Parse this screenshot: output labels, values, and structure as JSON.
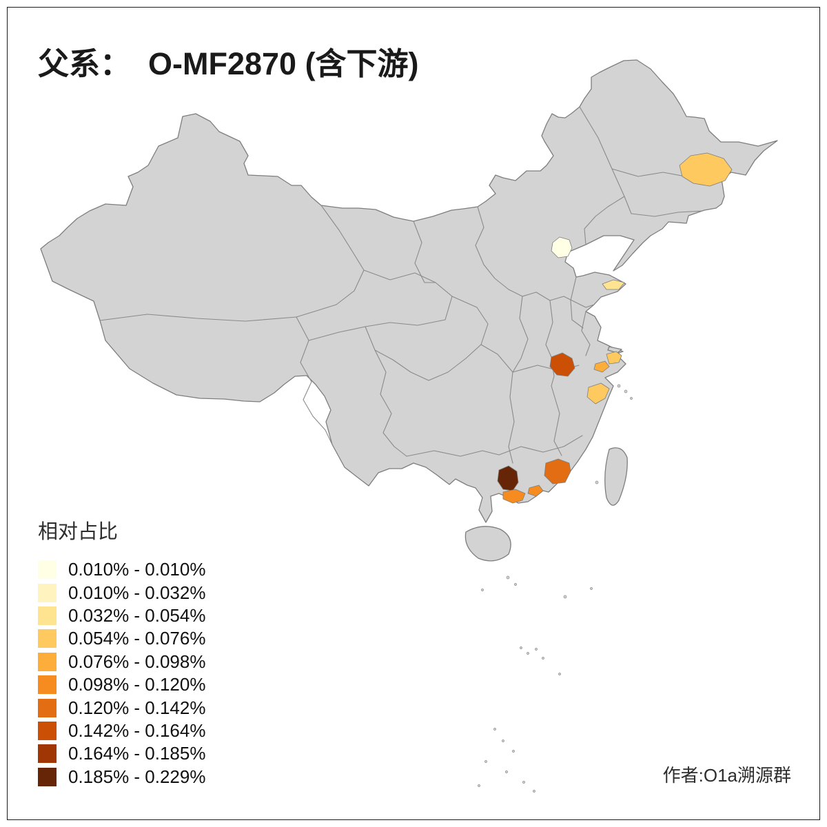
{
  "title": "父系：  O-MF2870 (含下游)",
  "author_credit": "作者:O1a溯源群",
  "legend": {
    "title": "相对占比",
    "items": [
      {
        "range": "0.010% - 0.010%",
        "color": "#FFFFE5"
      },
      {
        "range": "0.010% - 0.032%",
        "color": "#FFF3BF"
      },
      {
        "range": "0.032% - 0.054%",
        "color": "#FEE391"
      },
      {
        "range": "0.054% - 0.076%",
        "color": "#FEC95F"
      },
      {
        "range": "0.076% - 0.098%",
        "color": "#FDAE3A"
      },
      {
        "range": "0.098% - 0.120%",
        "color": "#F68C20"
      },
      {
        "range": "0.120% - 0.142%",
        "color": "#E36D12"
      },
      {
        "range": "0.142% - 0.164%",
        "color": "#CC4F06"
      },
      {
        "range": "0.164% - 0.185%",
        "color": "#A03603"
      },
      {
        "range": "0.185% - 0.229%",
        "color": "#662506"
      }
    ]
  },
  "map": {
    "base_fill": "#D3D3D3",
    "border_color": "#7d7d7d",
    "highlights": [
      {
        "id": "northeast-heilongjiang-region",
        "range": "0.054% - 0.076%",
        "color": "#FEC95F"
      },
      {
        "id": "beijing-region",
        "range": "0.010% - 0.010%",
        "color": "#FFFFE5"
      },
      {
        "id": "shandong-peninsula-region",
        "range": "0.032% - 0.054%",
        "color": "#FEE391"
      },
      {
        "id": "anhui-central-region",
        "range": "0.142% - 0.164%",
        "color": "#CC4F06"
      },
      {
        "id": "jiangsu-coast-region",
        "range": "0.054% - 0.076%",
        "color": "#FEC95F"
      },
      {
        "id": "jiangsu-south-region",
        "range": "0.076% - 0.098%",
        "color": "#FDAE3A"
      },
      {
        "id": "zhejiang-north-region",
        "range": "0.054% - 0.076%",
        "color": "#FEC95F"
      },
      {
        "id": "guangdong-west-region",
        "range": "0.185% - 0.229%",
        "color": "#662506"
      },
      {
        "id": "guangdong-central-region",
        "range": "0.120% - 0.142%",
        "color": "#E36D12"
      },
      {
        "id": "guangdong-southwest-region",
        "range": "0.098% - 0.120%",
        "color": "#F68C20"
      },
      {
        "id": "guangdong-coast-small-region",
        "range": "0.098% - 0.120%",
        "color": "#F68C20"
      }
    ]
  },
  "chart_data": {
    "type": "choropleth-map",
    "title": "父系：  O-MF2870 (含下游)",
    "legend_title": "相对占比",
    "legend_position": "bottom-left",
    "classes": [
      {
        "range": "0.010% - 0.010%",
        "color": "#FFFFE5"
      },
      {
        "range": "0.010% - 0.032%",
        "color": "#FFF3BF"
      },
      {
        "range": "0.032% - 0.054%",
        "color": "#FEE391"
      },
      {
        "range": "0.054% - 0.076%",
        "color": "#FEC95F"
      },
      {
        "range": "0.076% - 0.098%",
        "color": "#FDAE3A"
      },
      {
        "range": "0.098% - 0.120%",
        "color": "#F68C20"
      },
      {
        "range": "0.120% - 0.142%",
        "color": "#E36D12"
      },
      {
        "range": "0.142% - 0.164%",
        "color": "#CC4F06"
      },
      {
        "range": "0.164% - 0.185%",
        "color": "#A03603"
      },
      {
        "range": "0.185% - 0.229%",
        "color": "#662506"
      }
    ],
    "shaded_regions": [
      {
        "region": "northeast-heilongjiang",
        "class": "0.054% - 0.076%"
      },
      {
        "region": "beijing",
        "class": "0.010% - 0.010%"
      },
      {
        "region": "shandong-peninsula",
        "class": "0.032% - 0.054%"
      },
      {
        "region": "anhui-central",
        "class": "0.142% - 0.164%"
      },
      {
        "region": "jiangsu-coast",
        "class": "0.054% - 0.076%"
      },
      {
        "region": "jiangsu-south",
        "class": "0.076% - 0.098%"
      },
      {
        "region": "zhejiang-north",
        "class": "0.054% - 0.076%"
      },
      {
        "region": "guangdong-west",
        "class": "0.185% - 0.229%"
      },
      {
        "region": "guangdong-central",
        "class": "0.120% - 0.142%"
      },
      {
        "region": "guangdong-southwest",
        "class": "0.098% - 0.120%"
      },
      {
        "region": "guangdong-coast-small",
        "class": "0.098% - 0.120%"
      }
    ]
  }
}
